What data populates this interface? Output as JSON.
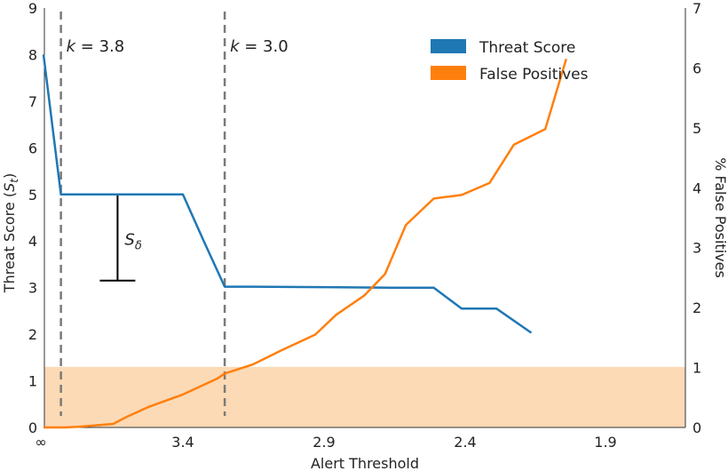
{
  "chart_data": {
    "type": "line",
    "xlabel": "Alert Threshold",
    "ylabel_left": "Threat Score (S_t)",
    "ylabel_right": "% False Positives",
    "x_ticks": [
      "∞",
      "3.4",
      "2.9",
      "2.4",
      "1.9"
    ],
    "y_left_ticks": [
      "0",
      "1",
      "2",
      "3",
      "4",
      "5",
      "6",
      "7",
      "8",
      "9"
    ],
    "y_right_ticks": [
      "0",
      "1",
      "2",
      "3",
      "4",
      "5",
      "6",
      "7"
    ],
    "ylim_left": [
      0,
      9
    ],
    "ylim_right": [
      0,
      7
    ],
    "grid": false,
    "legend_position": "top-right",
    "series": [
      {
        "name": "Threat Score",
        "axis": "left",
        "color": "#1f77b4",
        "points": [
          [
            0.0,
            8.0
          ],
          [
            0.25,
            5.0
          ],
          [
            1.0,
            5.0
          ],
          [
            2.0,
            5.0
          ],
          [
            2.3,
            4.0
          ],
          [
            2.6,
            3.02
          ],
          [
            3.0,
            3.02
          ],
          [
            4.0,
            3.01
          ],
          [
            5.0,
            3.0
          ],
          [
            5.6,
            3.0
          ],
          [
            6.0,
            2.55
          ],
          [
            6.5,
            2.55
          ],
          [
            7.0,
            2.03
          ]
        ]
      },
      {
        "name": "False Positives",
        "axis": "right",
        "color": "#ff7f0e",
        "points": [
          [
            0.0,
            0.0
          ],
          [
            0.3,
            0.0
          ],
          [
            0.5,
            0.01
          ],
          [
            1.0,
            0.06
          ],
          [
            1.2,
            0.18
          ],
          [
            1.5,
            0.34
          ],
          [
            2.0,
            0.55
          ],
          [
            2.5,
            0.82
          ],
          [
            2.6,
            0.9
          ],
          [
            3.0,
            1.05
          ],
          [
            3.4,
            1.28
          ],
          [
            3.9,
            1.55
          ],
          [
            4.2,
            1.88
          ],
          [
            4.6,
            2.2
          ],
          [
            4.9,
            2.56
          ],
          [
            5.2,
            3.38
          ],
          [
            5.6,
            3.82
          ],
          [
            6.0,
            3.88
          ],
          [
            6.4,
            4.08
          ],
          [
            6.75,
            4.72
          ],
          [
            7.2,
            4.98
          ],
          [
            7.5,
            6.15
          ]
        ]
      }
    ],
    "vlines": [
      {
        "x": 0.25,
        "label": "k = 3.8"
      },
      {
        "x": 2.6,
        "label": "k = 3.0"
      }
    ],
    "shaded_band": {
      "y_from": 0,
      "y_to": 1.3,
      "axis": "left",
      "color": "#fbd3a8"
    },
    "error_bar": {
      "x": 1.05,
      "y_top": 5.0,
      "y_bottom": 3.15,
      "label": "S_δ"
    }
  }
}
